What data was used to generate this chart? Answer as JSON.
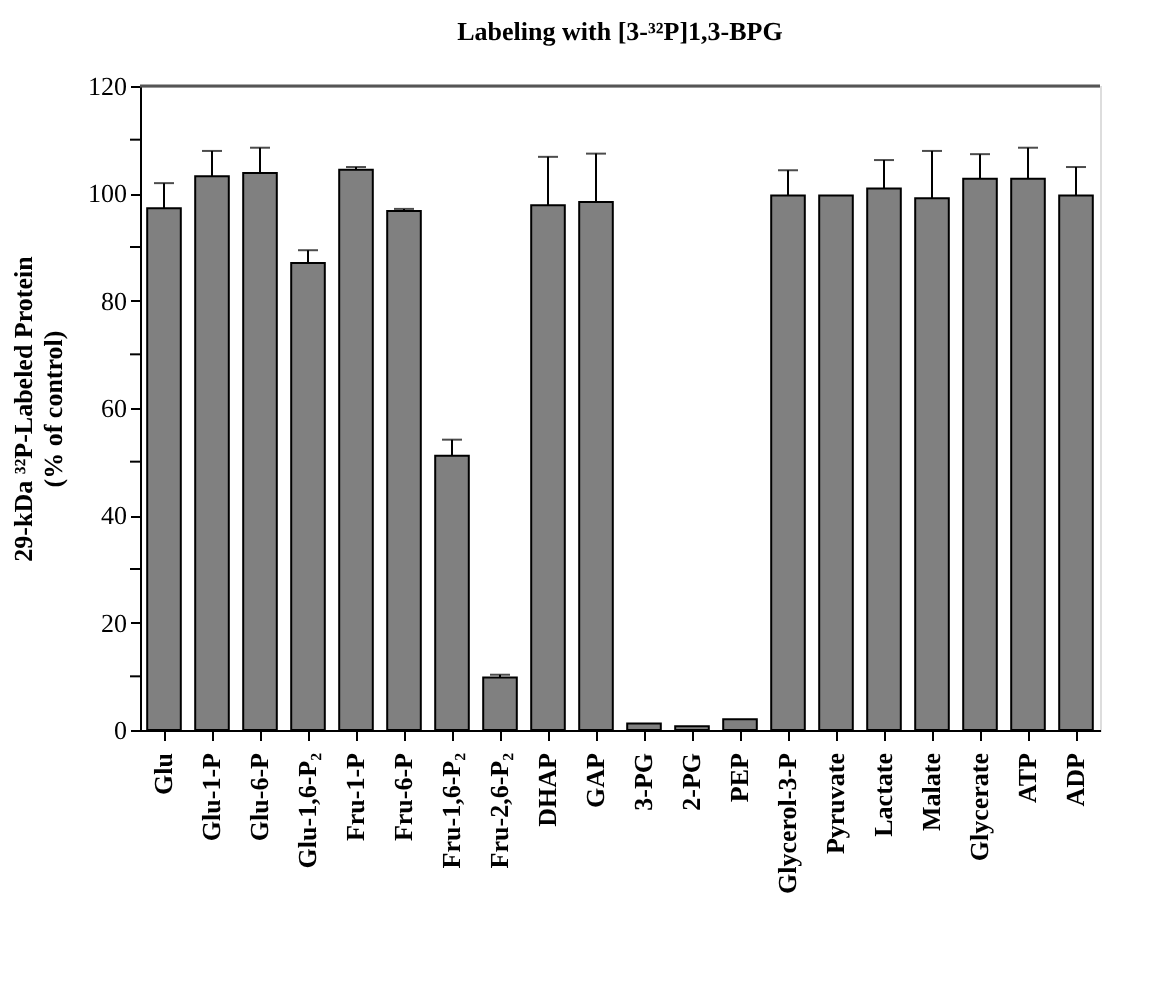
{
  "chart_data": {
    "type": "bar",
    "title": "Labeling with [3-³²P]1,3-BPG",
    "ylabel": [
      "29-kDa ³²P-Labeled Protein",
      "(% of control)"
    ],
    "categories": [
      "Glu",
      "Glu-1-P",
      "Glu-6-P",
      "Glu-1,6-P₂",
      "Fru-1-P",
      "Fru-6-P",
      "Fru-1,6-P₂",
      "Fru-2,6-P₂",
      "DHAP",
      "GAP",
      "3-PG",
      "2-PG",
      "PEP",
      "Glycerol-3-P",
      "Pyruvate",
      "Lactate",
      "Malate",
      "Glycerate",
      "ATP",
      "ADP"
    ],
    "values": [
      97.2,
      103.2,
      103.8,
      87.0,
      104.4,
      96.7,
      51.1,
      9.8,
      97.8,
      98.4,
      1.2,
      0.7,
      2.0,
      99.6,
      99.6,
      100.9,
      99.1,
      102.7,
      102.7,
      99.6
    ],
    "errors": [
      4.7,
      4.7,
      4.7,
      2.4,
      0.5,
      0.4,
      3.0,
      0.5,
      9.0,
      9.0,
      null,
      null,
      null,
      4.7,
      null,
      5.3,
      8.8,
      4.6,
      5.8,
      5.3
    ],
    "color": "#808080",
    "ylim": [
      0,
      120
    ],
    "yticks": [
      0,
      {
        "value": 10,
        "label": null
      },
      20,
      {
        "value": 30,
        "label": null
      },
      40,
      {
        "value": 50,
        "label": null
      },
      60,
      {
        "value": 70,
        "label": null
      },
      80,
      {
        "value": 90,
        "label": null
      },
      100,
      {
        "value": 110,
        "label": null
      },
      120
    ],
    "grid": false
  }
}
